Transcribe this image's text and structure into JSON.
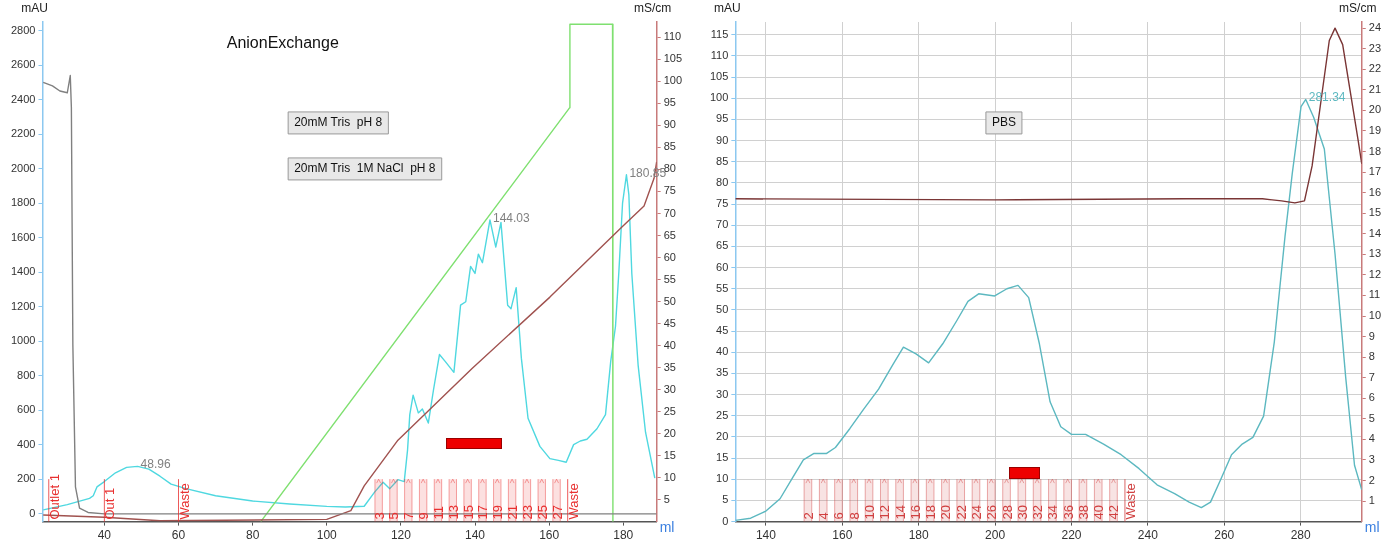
{
  "chart_data": [
    {
      "type": "line",
      "title": "AnionExchange",
      "xlabel": "ml",
      "ylabel": "mAU",
      "y2label": "mS/cm",
      "xlim": [
        23.3,
        189
      ],
      "xticks": [
        40,
        60,
        80,
        100,
        120,
        140,
        160,
        180
      ],
      "ylim": [
        -45,
        2850
      ],
      "yticks": [
        0,
        200,
        400,
        600,
        800,
        1000,
        1200,
        1400,
        1600,
        1800,
        2000,
        2200,
        2400,
        2600,
        2800
      ],
      "y2lim": [
        0,
        113.5
      ],
      "y2ticks": [
        5,
        10,
        15,
        20,
        25,
        30,
        35,
        40,
        45,
        50,
        55,
        60,
        65,
        70,
        75,
        80,
        85,
        90,
        95,
        100,
        105,
        110
      ],
      "grid": false,
      "legend": false,
      "series": [
        {
          "color": "#808080",
          "x": [
            23.5,
            26,
            28,
            30,
            30.8,
            31.1,
            31.5,
            32.2,
            33.3,
            35.6,
            40,
            60,
            100,
            150,
            189
          ],
          "values": [
            2500,
            2480,
            2450,
            2440,
            2540,
            2353,
            977,
            156,
            33,
            8,
            0,
            0,
            0,
            0,
            0
          ]
        },
        {
          "color": "#a0524f",
          "axis": "y2",
          "x": [
            23.5,
            40,
            55,
            100,
            106.5,
            110.1,
            119.2,
            139.2,
            160.2,
            179.7,
            185.6,
            188.3,
            189
          ],
          "values": [
            1.5,
            1,
            0.2,
            0.5,
            2.5,
            8.1,
            18.5,
            34.8,
            51,
            67,
            71.7,
            78,
            81.7
          ]
        },
        {
          "color": "#7fe070",
          "axis": "y2",
          "x": [
            82.2,
            165.5,
            165.6,
            177.1,
            177.2
          ],
          "values": [
            0,
            94,
            113,
            113,
            0
          ]
        },
        {
          "color": "#4fd8e0",
          "x": [
            23.5,
            30,
            36,
            37,
            38,
            40,
            43,
            46,
            48.96,
            52,
            55,
            58,
            62,
            70,
            80,
            90,
            100,
            105,
            110.1,
            112.9,
            115.2,
            117,
            119.2,
            120.9,
            121.8,
            122.4,
            123.3,
            124.7,
            125.8,
            127.4,
            128.8,
            130.4,
            132,
            134.3,
            136.1,
            137.5,
            138.8,
            140,
            140.9,
            142,
            144.03,
            145.6,
            147,
            148.8,
            149.7,
            151.1,
            152.5,
            154.3,
            157.5,
            160.2,
            162.5,
            164.6,
            166.6,
            168.4,
            170.2,
            172.9,
            175.2,
            176.6,
            177.9,
            178.8,
            179.8,
            180.85,
            181.5,
            182.3,
            184,
            186,
            188.5
          ],
          "values": [
            23,
            53,
            90,
            105,
            156,
            187,
            238,
            269,
            275,
            259,
            218,
            172,
            146,
            105,
            74,
            57,
            43,
            40,
            44,
            126,
            183,
            146,
            198,
            187,
            371,
            575,
            688,
            585,
            608,
            526,
            719,
            923,
            882,
            820,
            1209,
            1229,
            1434,
            1393,
            1505,
            1455,
            1703,
            1546,
            1689,
            1209,
            1188,
            1311,
            902,
            554,
            391,
            320,
            310,
            299,
            401,
            422,
            432,
            493,
            575,
            882,
            1087,
            1400,
            1800,
            1965,
            1850,
            1393,
            862,
            473,
            207
          ]
        }
      ],
      "annotations": [
        "20mM Tris  pH 8",
        "20mM Tris  1M NaCl  pH 8",
        {
          "text": "48.96",
          "x": 48.96,
          "y": 275
        },
        {
          "text": "144.03",
          "x": 144.03,
          "y": 1703
        },
        {
          "text": "180.85",
          "x": 180.85,
          "y": 1965
        }
      ],
      "ref_lines": [
        {
          "axis": "x",
          "value": 25,
          "label": "Outlet 1",
          "color": "#e83030"
        },
        {
          "axis": "x",
          "value": 40,
          "label": "Out 1",
          "color": "#e83030"
        },
        {
          "axis": "x",
          "value": 60,
          "label": "Waste",
          "color": "#e83030"
        },
        {
          "axis": "x",
          "value": 165,
          "label": "Waste",
          "color": "#e83030"
        }
      ],
      "bands": [
        {
          "axis": "x",
          "from": 113,
          "to": 115,
          "label": "3",
          "color": "#e83030"
        },
        {
          "axis": "x",
          "from": 117,
          "to": 119,
          "label": "5",
          "color": "#e83030"
        },
        {
          "axis": "x",
          "from": 121,
          "to": 123,
          "label": "7",
          "color": "#e83030"
        },
        {
          "axis": "x",
          "from": 125,
          "to": 127,
          "label": "9",
          "color": "#e83030"
        },
        {
          "axis": "x",
          "from": 129,
          "to": 131,
          "label": "11",
          "color": "#e83030"
        },
        {
          "axis": "x",
          "from": 133,
          "to": 135,
          "label": "13",
          "color": "#e83030"
        },
        {
          "axis": "x",
          "from": 137,
          "to": 139,
          "label": "15",
          "color": "#e83030"
        },
        {
          "axis": "x",
          "from": 141,
          "to": 143,
          "label": "17",
          "color": "#e83030"
        },
        {
          "axis": "x",
          "from": 145,
          "to": 147,
          "label": "19",
          "color": "#e83030"
        },
        {
          "axis": "x",
          "from": 149,
          "to": 151,
          "label": "21",
          "color": "#e83030"
        },
        {
          "axis": "x",
          "from": 153,
          "to": 155,
          "label": "23",
          "color": "#e83030"
        },
        {
          "axis": "x",
          "from": 157,
          "to": 159,
          "label": "25",
          "color": "#e83030"
        },
        {
          "axis": "x",
          "from": 161,
          "to": 163,
          "label": "27",
          "color": "#e83030"
        }
      ]
    },
    {
      "type": "line",
      "xlabel": "ml",
      "ylabel": "mAU",
      "y2label": "mS/cm",
      "xlim": [
        132,
        296
      ],
      "xticks": [
        140,
        160,
        180,
        200,
        220,
        240,
        260,
        280
      ],
      "ylim": [
        0,
        118
      ],
      "yticks": [
        0,
        5,
        10,
        15,
        20,
        25,
        30,
        35,
        40,
        45,
        50,
        55,
        60,
        65,
        70,
        75,
        80,
        85,
        90,
        95,
        100,
        105,
        110,
        115
      ],
      "y2lim": [
        0,
        24.3
      ],
      "y2ticks": [
        1,
        2,
        3,
        4,
        5,
        6,
        7,
        8,
        9,
        10,
        11,
        12,
        13,
        14,
        15,
        16,
        17,
        18,
        19,
        20,
        21,
        22,
        23,
        24
      ],
      "grid": true,
      "legend": false,
      "series": [
        {
          "color": "#7a3535",
          "axis": "y2",
          "x": [
            132,
            200,
            250,
            270,
            275,
            278.5,
            281,
            283,
            285.5,
            287.5,
            289,
            291,
            293,
            295,
            296
          ],
          "values": [
            15.7,
            15.65,
            15.7,
            15.7,
            15.6,
            15.5,
            15.6,
            17.3,
            20.7,
            23.4,
            24,
            23.2,
            20.9,
            18.6,
            17.4
          ]
        },
        {
          "color": "#5cb8c0",
          "x": [
            132,
            136,
            140,
            143.7,
            147,
            149.8,
            152.6,
            155.9,
            158.2,
            162,
            165.7,
            169.5,
            173.2,
            176,
            179.3,
            182.6,
            186.3,
            190,
            192.9,
            195.7,
            199.9,
            203.1,
            206,
            208.8,
            211.6,
            214.4,
            217.2,
            220,
            223.7,
            228.4,
            233,
            237.7,
            242.4,
            247,
            250.8,
            254,
            256.4,
            259.1,
            261.9,
            264.7,
            267.5,
            270.3,
            273.1,
            275.9,
            277.8,
            280.1,
            281.34,
            283.4,
            286.2,
            289,
            291.8,
            294.1,
            296
          ],
          "values": [
            0.3,
            0.8,
            2.5,
            5.4,
            10.4,
            14.6,
            16.1,
            16.1,
            17.5,
            22,
            26.7,
            31.3,
            37,
            41.2,
            39.6,
            37.5,
            42,
            47.5,
            52,
            53.8,
            53.3,
            55,
            55.8,
            52.9,
            42,
            28.3,
            22.4,
            20.6,
            20.6,
            18.3,
            15.8,
            12.5,
            8.7,
            6.6,
            4.6,
            3.3,
            4.6,
            10,
            15.8,
            18.3,
            19.9,
            24.9,
            42.4,
            67.3,
            82.2,
            98,
            99.7,
            95.5,
            88,
            63.2,
            34,
            13.3,
            7.5
          ]
        }
      ],
      "annotations": [
        "PBS",
        {
          "text": "281.34",
          "x": 281.34,
          "y": 99.7
        }
      ],
      "ref_lines": [
        {
          "axis": "x",
          "value": 234,
          "label": "Waste",
          "color": "#d04040"
        }
      ],
      "bands": [
        {
          "axis": "x",
          "from": 150,
          "to": 152,
          "label": "2",
          "color": "#d04040"
        },
        {
          "axis": "x",
          "from": 154,
          "to": 156,
          "label": "4",
          "color": "#d04040"
        },
        {
          "axis": "x",
          "from": 158,
          "to": 160,
          "label": "6",
          "color": "#d04040"
        },
        {
          "axis": "x",
          "from": 162,
          "to": 164,
          "label": "8",
          "color": "#d04040"
        },
        {
          "axis": "x",
          "from": 166,
          "to": 168,
          "label": "10",
          "color": "#d04040"
        },
        {
          "axis": "x",
          "from": 170,
          "to": 172,
          "label": "12",
          "color": "#d04040"
        },
        {
          "axis": "x",
          "from": 174,
          "to": 176,
          "label": "14",
          "color": "#d04040"
        },
        {
          "axis": "x",
          "from": 178,
          "to": 180,
          "label": "16",
          "color": "#d04040"
        },
        {
          "axis": "x",
          "from": 182,
          "to": 184,
          "label": "18",
          "color": "#d04040"
        },
        {
          "axis": "x",
          "from": 186,
          "to": 188,
          "label": "20",
          "color": "#d04040"
        },
        {
          "axis": "x",
          "from": 190,
          "to": 192,
          "label": "22",
          "color": "#d04040"
        },
        {
          "axis": "x",
          "from": 194,
          "to": 196,
          "label": "24",
          "color": "#d04040"
        },
        {
          "axis": "x",
          "from": 198,
          "to": 200,
          "label": "26",
          "color": "#d04040"
        },
        {
          "axis": "x",
          "from": 202,
          "to": 204,
          "label": "28",
          "color": "#d04040"
        },
        {
          "axis": "x",
          "from": 206,
          "to": 208,
          "label": "30",
          "color": "#d04040"
        },
        {
          "axis": "x",
          "from": 210,
          "to": 212,
          "label": "32",
          "color": "#d04040"
        },
        {
          "axis": "x",
          "from": 214,
          "to": 216,
          "label": "34",
          "color": "#d04040"
        },
        {
          "axis": "x",
          "from": 218,
          "to": 220,
          "label": "36",
          "color": "#d04040"
        },
        {
          "axis": "x",
          "from": 222,
          "to": 224,
          "label": "38",
          "color": "#d04040"
        },
        {
          "axis": "x",
          "from": 226,
          "to": 228,
          "label": "40",
          "color": "#d04040"
        },
        {
          "axis": "x",
          "from": 230,
          "to": 232,
          "label": "42",
          "color": "#d04040"
        }
      ]
    }
  ]
}
